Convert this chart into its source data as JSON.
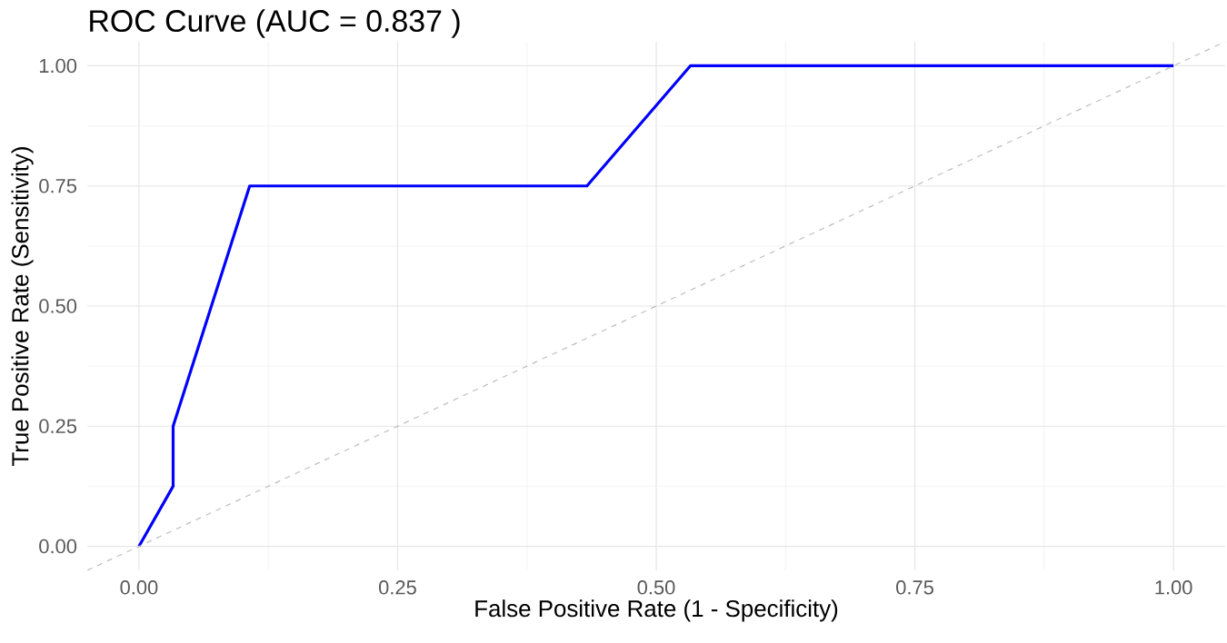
{
  "chart_data": {
    "type": "line",
    "title": "ROC Curve (AUC = 0.837 )",
    "xlabel": "False Positive Rate (1 - Specificity)",
    "ylabel": "True Positive Rate (Sensitivity)",
    "series": [
      {
        "color": "#0000ff",
        "x": [
          0,
          0.033,
          0.033,
          0.107,
          0.433,
          0.533,
          1
        ],
        "values": [
          0,
          0.125,
          0.25,
          0.75,
          0.75,
          1,
          1
        ],
        "line_style": "solid"
      },
      {
        "color": "#bebebe",
        "x": [
          -0.05,
          1.05
        ],
        "values": [
          -0.05,
          1.05
        ],
        "line_style": "dashed"
      }
    ],
    "xlim": [
      -0.05,
      1.05
    ],
    "ylim": [
      -0.05,
      1.05
    ],
    "xticks": [
      {
        "value": 0,
        "label": "0.00"
      },
      {
        "value": 0.25,
        "label": "0.25"
      },
      {
        "value": 0.5,
        "label": "0.50"
      },
      {
        "value": 0.75,
        "label": "0.75"
      },
      {
        "value": 1,
        "label": "1.00"
      }
    ],
    "yticks": [
      {
        "value": 0,
        "label": "0.00"
      },
      {
        "value": 0.25,
        "label": "0.25"
      },
      {
        "value": 0.5,
        "label": "0.50"
      },
      {
        "value": 0.75,
        "label": "0.75"
      },
      {
        "value": 1,
        "label": "1.00"
      }
    ],
    "grid": true
  }
}
